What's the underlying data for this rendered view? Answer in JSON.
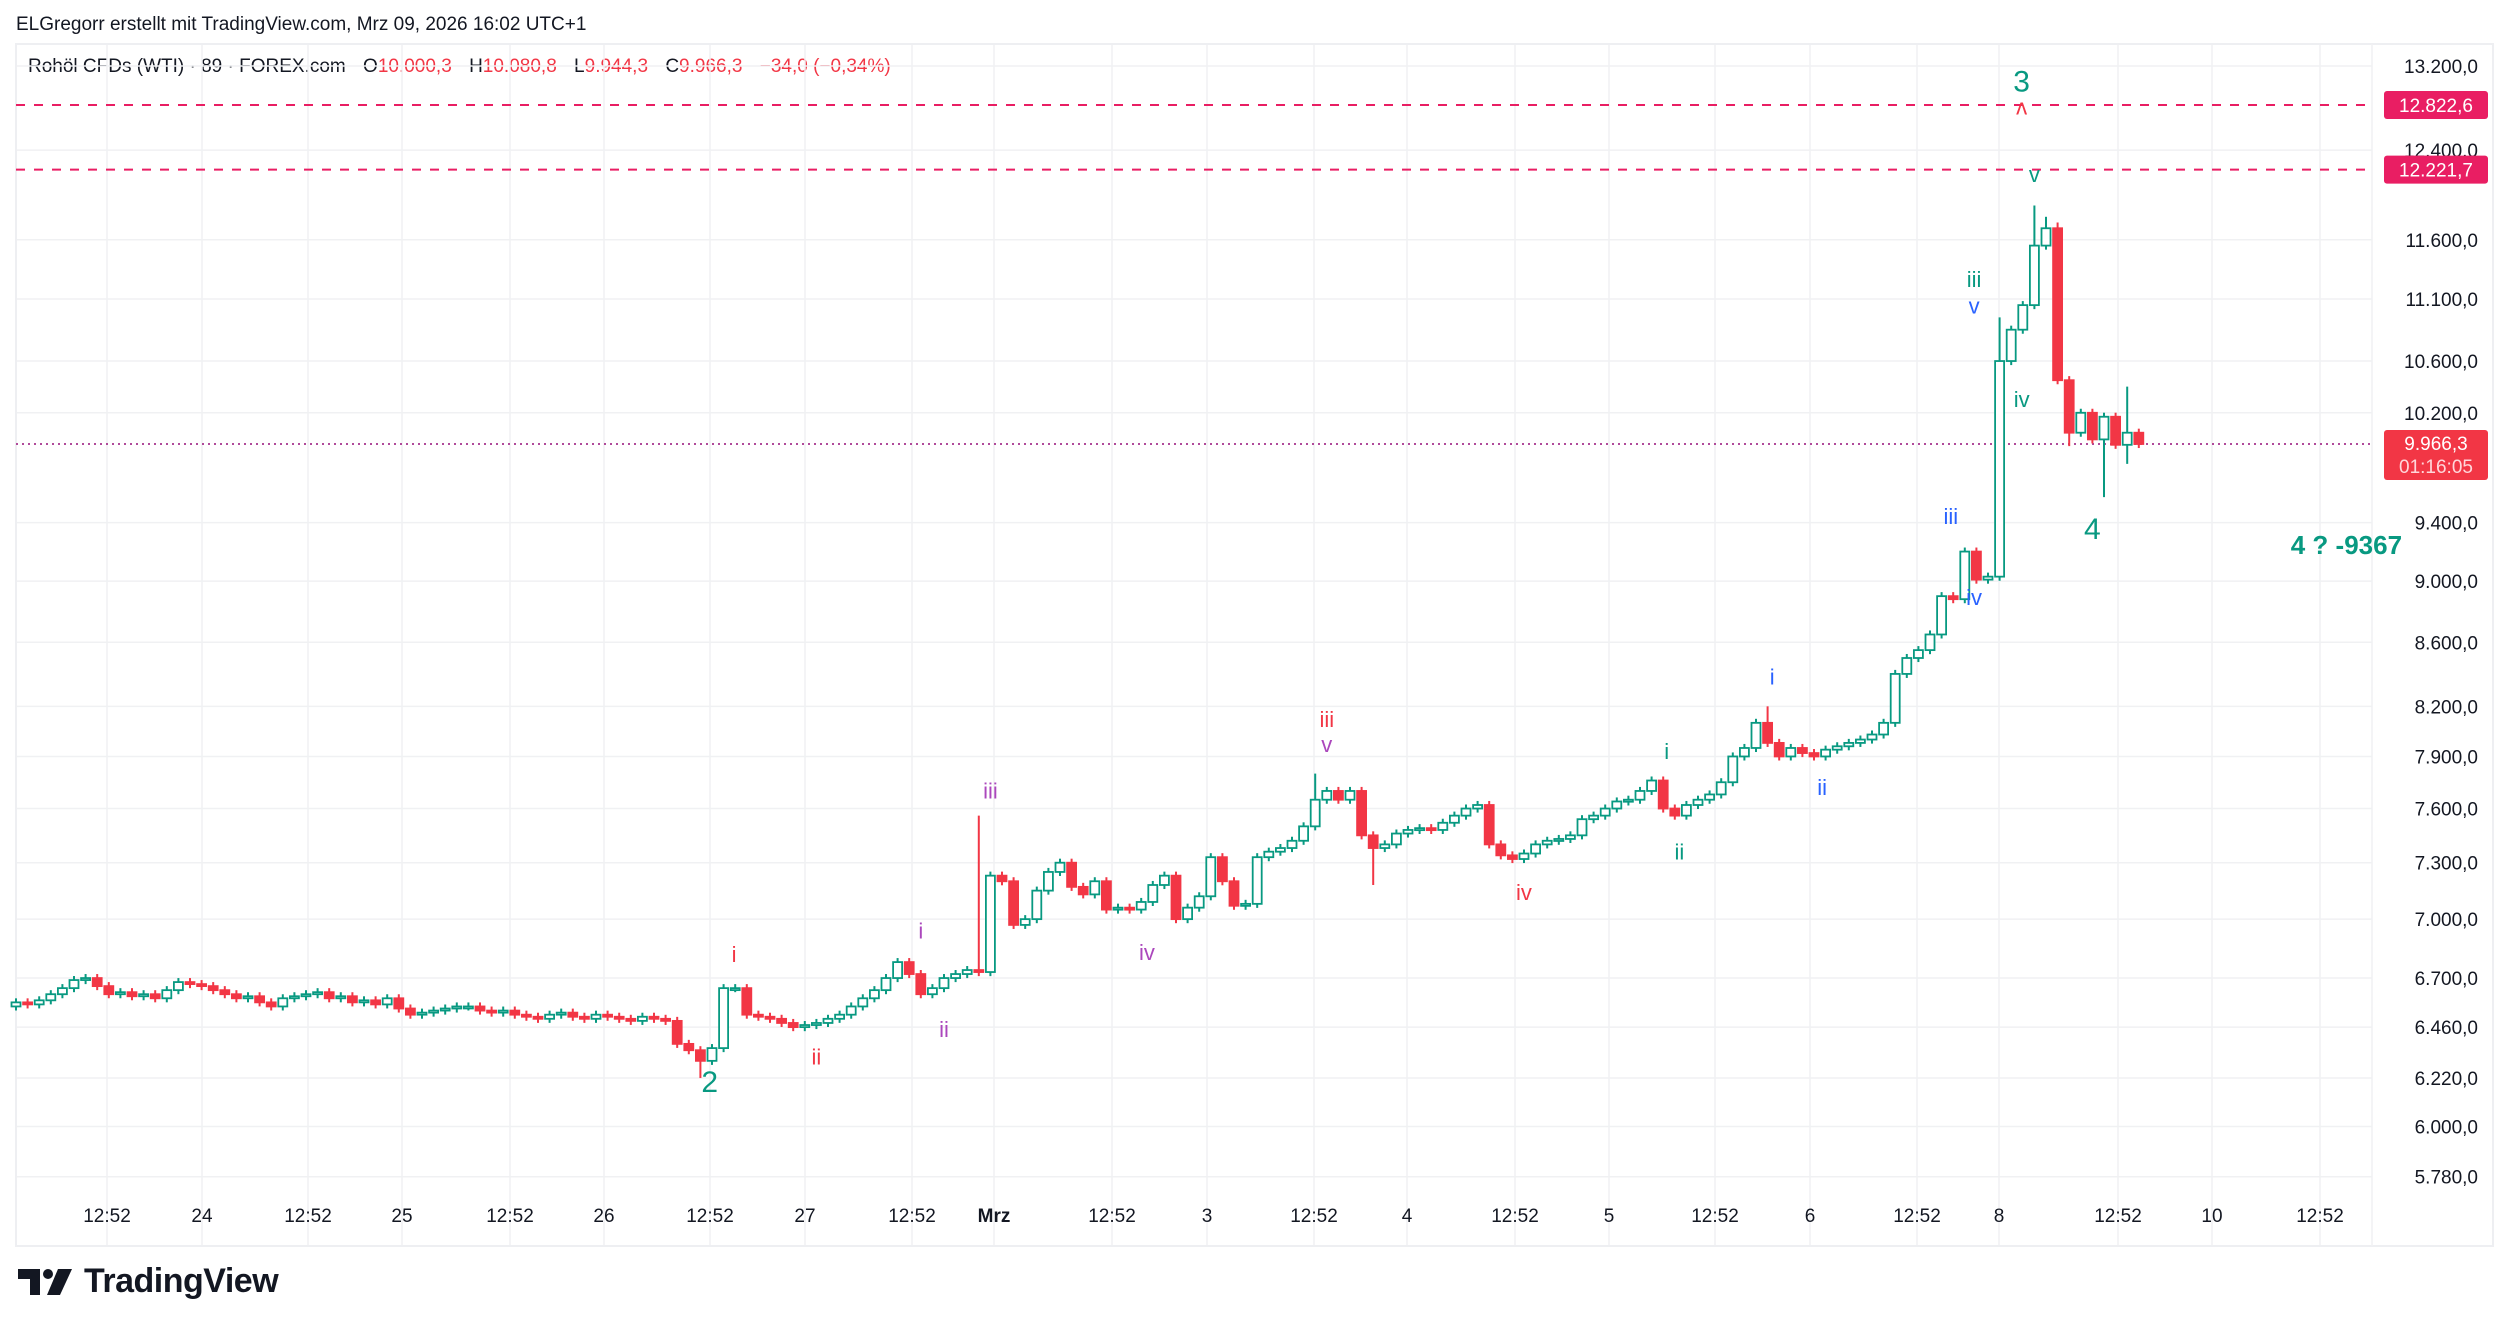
{
  "header": {
    "title": "ELGregorr erstellt mit TradingView.com, Mrz 09, 2026 16:02 UTC+1"
  },
  "legend": {
    "symbol": "Rohöl CFDs (WTI) · 89 · FOREX.com",
    "o_label": "O",
    "o_value": "10.000,3",
    "h_label": "H",
    "h_value": "10.080,8",
    "l_label": "L",
    "l_value": "9.944,3",
    "c_label": "C",
    "c_value": "9.966,3",
    "change": "−34,0 (−0,34%)"
  },
  "logo": {
    "text": "TradingView"
  },
  "colors": {
    "up": "#089981",
    "down": "#f23645",
    "blue": "#2962ff",
    "purple": "#ab47bc",
    "line": "#e91e63",
    "current": "#f23645"
  },
  "chart_data": {
    "type": "candlestick",
    "title": "Rohöl CFDs (WTI) · 89 · FOREX.com",
    "scale": "log",
    "ylim": [
      5700,
      13300
    ],
    "y_ticks": [
      "13.200,0",
      "12.400,0",
      "11.600,0",
      "11.100,0",
      "10.600,0",
      "10.200,0",
      "9.400,0",
      "9.000,0",
      "8.600,0",
      "8.200,0",
      "7.900,0",
      "7.600,0",
      "7.300,0",
      "7.000,0",
      "6.700,0",
      "6.460,0",
      "6.220,0",
      "6.000,0",
      "5.780,0"
    ],
    "x_ticks": [
      "12:52",
      "24",
      "12:52",
      "25",
      "12:52",
      "26",
      "12:52",
      "27",
      "12:52",
      "Mrz",
      "12:52",
      "3",
      "12:52",
      "4",
      "12:52",
      "5",
      "12:52",
      "6",
      "12:52",
      "8",
      "12:52",
      "10",
      "12:52"
    ],
    "first_open": 6560,
    "closes": [
      6580,
      6570,
      6590,
      6620,
      6650,
      6690,
      6700,
      6660,
      6620,
      6630,
      6610,
      6620,
      6600,
      6640,
      6680,
      6670,
      6660,
      6640,
      6620,
      6600,
      6610,
      6580,
      6560,
      6600,
      6610,
      6620,
      6630,
      6600,
      6610,
      6580,
      6590,
      6570,
      6600,
      6550,
      6520,
      6530,
      6540,
      6550,
      6560,
      6560,
      6540,
      6530,
      6540,
      6520,
      6510,
      6500,
      6520,
      6530,
      6510,
      6500,
      6520,
      6510,
      6500,
      6490,
      6510,
      6500,
      6490,
      6380,
      6350,
      6300,
      6360,
      6650,
      6650,
      6520,
      6510,
      6500,
      6480,
      6460,
      6470,
      6480,
      6500,
      6520,
      6560,
      6600,
      6640,
      6700,
      6780,
      6720,
      6620,
      6650,
      6700,
      6720,
      6740,
      6730,
      7230,
      7200,
      6970,
      7000,
      7150,
      7250,
      7300,
      7170,
      7130,
      7200,
      7050,
      7060,
      7050,
      7090,
      7180,
      7230,
      7000,
      7060,
      7120,
      7330,
      7200,
      7070,
      7080,
      7330,
      7360,
      7380,
      7420,
      7500,
      7650,
      7700,
      7650,
      7700,
      7450,
      7380,
      7400,
      7460,
      7480,
      7490,
      7480,
      7520,
      7560,
      7600,
      7620,
      7400,
      7340,
      7320,
      7350,
      7400,
      7420,
      7430,
      7450,
      7540,
      7560,
      7600,
      7640,
      7650,
      7700,
      7760,
      7600,
      7560,
      7620,
      7650,
      7680,
      7750,
      7900,
      7950,
      8100,
      7980,
      7900,
      7950,
      7920,
      7900,
      7940,
      7960,
      7980,
      8000,
      8030,
      8100,
      8400,
      8500,
      8550,
      8650,
      8900,
      8880,
      9200,
      9010,
      9030,
      10600,
      10850,
      11050,
      11550,
      11700,
      10450,
      10050,
      10200,
      10000,
      10170,
      9960,
      10050,
      9966
    ],
    "wick_overrides": [
      {
        "i": 83,
        "h": 7560
      },
      {
        "i": 117,
        "l": 7180
      },
      {
        "i": 112,
        "h": 7800
      },
      {
        "i": 171,
        "h": 10950
      },
      {
        "i": 174,
        "h": 11900
      },
      {
        "i": 175,
        "h": 11800
      },
      {
        "i": 176,
        "h": 11750
      },
      {
        "i": 177,
        "l": 9950
      },
      {
        "i": 180,
        "l": 9580
      },
      {
        "i": 182,
        "h": 10400,
        "l": 9820
      },
      {
        "i": 151,
        "h": 8200
      },
      {
        "i": 59,
        "l": 6220
      }
    ],
    "price_lines": [
      {
        "value": 12822.6,
        "label": "12.822,6",
        "style": "dashed"
      },
      {
        "value": 12221.7,
        "label": "12.221,7",
        "style": "dashed"
      }
    ],
    "current_price": {
      "value": 9966.3,
      "label": "9.966,3",
      "countdown": "01:16:05"
    },
    "annotations": [
      {
        "text": "2",
        "color": "up",
        "i": 59.8,
        "price": 6192,
        "size": "big"
      },
      {
        "text": "i",
        "color": "down",
        "i": 61.9,
        "price": 6810
      },
      {
        "text": "ii",
        "color": "down",
        "i": 69,
        "price": 6310
      },
      {
        "text": "i",
        "color": "purple",
        "i": 78,
        "price": 6930
      },
      {
        "text": "ii",
        "color": "purple",
        "i": 80,
        "price": 6440
      },
      {
        "text": "iii",
        "color": "purple",
        "i": 84,
        "price": 7690
      },
      {
        "text": "iv",
        "color": "purple",
        "i": 97.5,
        "price": 6820
      },
      {
        "text": "iii",
        "color": "down",
        "i": 113,
        "price": 8110
      },
      {
        "text": "v",
        "color": "purple",
        "i": 113,
        "price": 7960
      },
      {
        "text": "iv",
        "color": "down",
        "i": 130,
        "price": 7130
      },
      {
        "text": "i",
        "color": "up",
        "i": 142.3,
        "price": 7920
      },
      {
        "text": "ii",
        "color": "up",
        "i": 143.4,
        "price": 7350
      },
      {
        "text": "i",
        "color": "blue",
        "i": 151.4,
        "price": 8370
      },
      {
        "text": "ii",
        "color": "blue",
        "i": 155.7,
        "price": 7710
      },
      {
        "text": "iii",
        "color": "blue",
        "i": 166.8,
        "price": 9430
      },
      {
        "text": "iv",
        "color": "blue",
        "i": 168.8,
        "price": 8880
      },
      {
        "text": "iii",
        "color": "up",
        "i": 168.8,
        "price": 11250
      },
      {
        "text": "v",
        "color": "blue",
        "i": 168.8,
        "price": 11030
      },
      {
        "text": "iv",
        "color": "up",
        "i": 172.9,
        "price": 10290
      },
      {
        "text": "v",
        "color": "up",
        "i": 174,
        "price": 12160
      },
      {
        "text": "3",
        "color": "up",
        "i": 172.9,
        "price": 13030,
        "size": "big"
      },
      {
        "text": "v",
        "color": "down",
        "i": 172.9,
        "price": 12790,
        "flip": true
      },
      {
        "text": "4",
        "color": "up",
        "i": 179,
        "price": 9340,
        "size": "big"
      },
      {
        "text": "4 ? -9367",
        "color": "up",
        "i": 196.1,
        "price": 9230,
        "size": "bold"
      }
    ]
  }
}
